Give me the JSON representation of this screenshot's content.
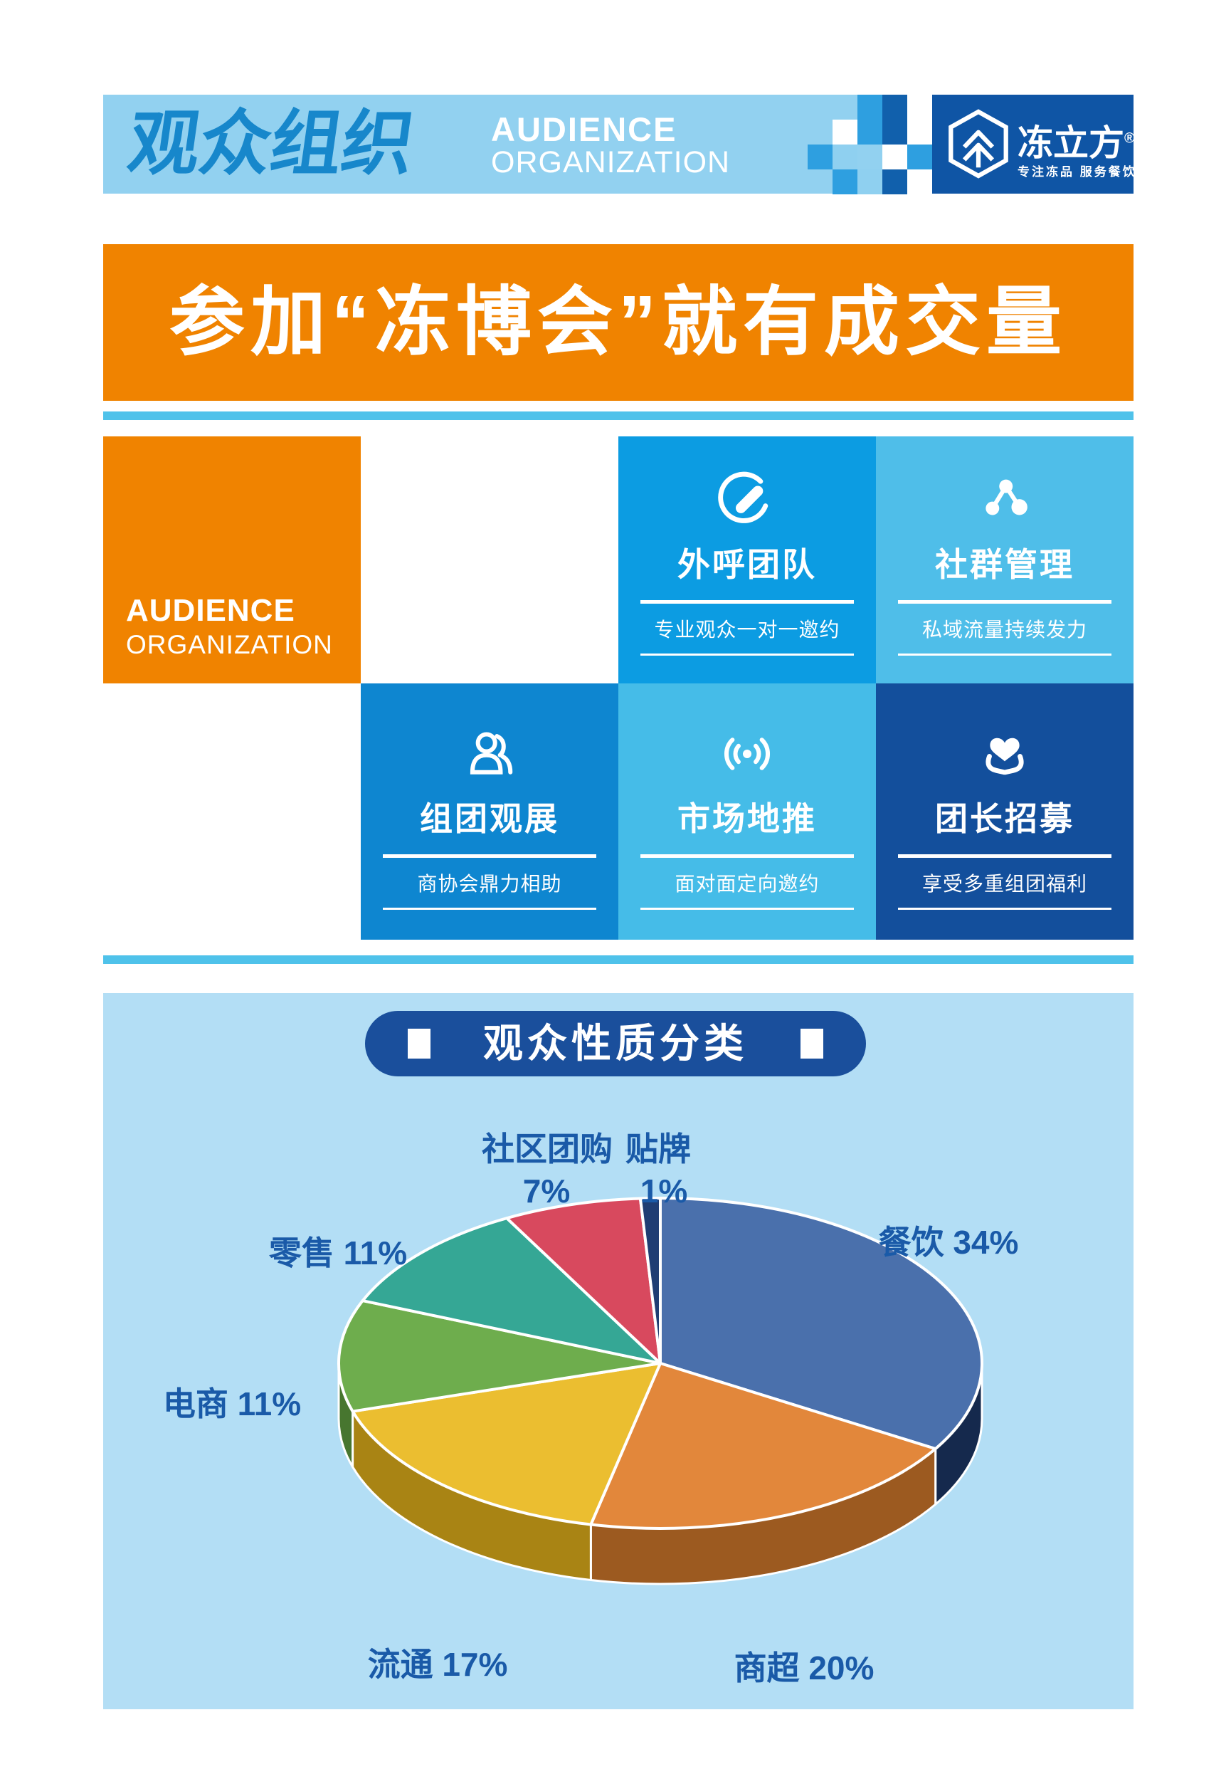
{
  "header": {
    "title_cn": "观众组织",
    "title_en_line1": "AUDIENCE",
    "title_en_line2": "ORGANIZATION"
  },
  "brand": {
    "name": "冻立方",
    "registered": "®",
    "tagline": "专注冻品 服务餐饮"
  },
  "banner": {
    "text": "参加“冻博会”就有成交量"
  },
  "audience_block": {
    "line1": "AUDIENCE",
    "line2": "ORGANIZATION"
  },
  "tiles": [
    {
      "title": "外呼团队",
      "subtitle": "专业观众一对一邀约",
      "icon": "phone-icon",
      "color": "#0C9CE2"
    },
    {
      "title": "社群管理",
      "subtitle": "私域流量持续发力",
      "icon": "share-icon",
      "color": "#4FBEE9"
    },
    {
      "title": "组团观展",
      "subtitle": "商协会鼎力相助",
      "icon": "group-icon",
      "color": "#0E86D0"
    },
    {
      "title": "市场地推",
      "subtitle": "面对面定向邀约",
      "icon": "broadcast-icon",
      "color": "#45BCE8"
    },
    {
      "title": "团长招募",
      "subtitle": "享受多重组团福利",
      "icon": "heart-hands-icon",
      "color": "#134F9C"
    }
  ],
  "chart_data": {
    "type": "pie",
    "title": "观众性质分类",
    "style": "3d-pie",
    "order": "clockwise-from-12-oclock",
    "slices": [
      {
        "label": "餐饮",
        "value": 34,
        "color": "#4A70AC",
        "side_color": "#15294D"
      },
      {
        "label": "商超",
        "value": 20,
        "color": "#E2873B",
        "side_color": "#9C5A20"
      },
      {
        "label": "流通",
        "value": 17,
        "color": "#EBBE30",
        "side_color": "#A98414"
      },
      {
        "label": "电商",
        "value": 11,
        "color": "#6EAD4D",
        "side_color": "#47762F"
      },
      {
        "label": "零售",
        "value": 11,
        "color": "#35A795",
        "side_color": "#1E6C5E"
      },
      {
        "label": "社区团购",
        "value": 7,
        "color": "#D8495E",
        "side_color": "#97303F"
      },
      {
        "label": "贴牌",
        "value": 1,
        "color": "#1F3D73",
        "side_color": "#0F1F3D"
      }
    ]
  },
  "pie_labels": {
    "canyin": "餐饮 34%",
    "shangchao": "商超 20%",
    "liutong": "流通 17%",
    "dianshang": "电商 11%",
    "lingshou": "零售 11%",
    "shequtuangou_name": "社区团购",
    "shequtuangou_pct": "7%",
    "tiepai_name": "贴牌",
    "tiepai_pct": "1%"
  },
  "colors": {
    "header_band": "#92D1F0",
    "header_title": "#1787CB",
    "logo_block_bg": "#0F55A5",
    "accent_orange": "#F08300",
    "divider_blue": "#4FC2EA",
    "panel_bg": "#B3DEF5",
    "pill_bg": "#1A4F9C",
    "pie_label_text": "#1A5AA8",
    "mosaic_light": "#8FD0F0",
    "mosaic_medium": "#2E9FE0",
    "mosaic_dark": "#1160AC"
  }
}
